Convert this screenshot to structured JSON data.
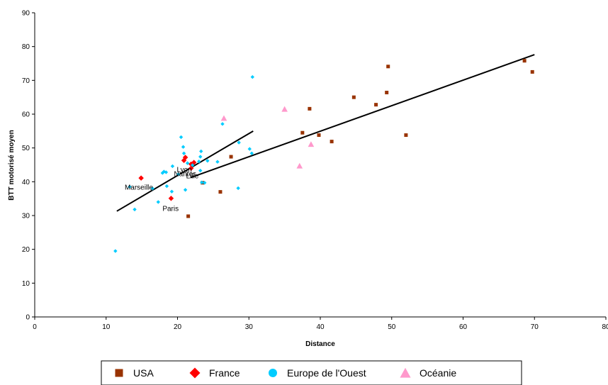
{
  "chart_data": {
    "type": "scatter",
    "xlabel": "Distance",
    "ylabel": "BTT motorisé moyen",
    "xlim": [
      0,
      80
    ],
    "ylim": [
      0,
      90
    ],
    "x_ticks": [
      0,
      10,
      20,
      30,
      40,
      50,
      60,
      70,
      80
    ],
    "y_ticks": [
      0,
      10,
      20,
      30,
      40,
      50,
      60,
      70,
      80,
      90
    ],
    "grid": false,
    "legend_position": "bottom",
    "series": [
      {
        "name": "USA",
        "marker": "square",
        "color": "#993300",
        "points": [
          [
            21.5,
            29.8
          ],
          [
            23.5,
            39.7
          ],
          [
            26.0,
            37.0
          ],
          [
            27.5,
            47.4
          ],
          [
            37.5,
            54.5
          ],
          [
            38.5,
            61.6
          ],
          [
            39.8,
            53.8
          ],
          [
            41.6,
            51.9
          ],
          [
            44.7,
            65.0
          ],
          [
            47.8,
            62.8
          ],
          [
            49.3,
            66.4
          ],
          [
            49.5,
            74.1
          ],
          [
            52.0,
            53.8
          ],
          [
            68.6,
            75.8
          ],
          [
            69.7,
            72.5
          ]
        ]
      },
      {
        "name": "France",
        "marker": "diamond",
        "color": "#ff0000",
        "points": [
          [
            14.9,
            41.1
          ],
          [
            19.1,
            35.1
          ],
          [
            20.9,
            46.3
          ],
          [
            21.1,
            47.2
          ],
          [
            21.9,
            45.2
          ],
          [
            21.9,
            44.0
          ],
          [
            22.3,
            45.7
          ]
        ]
      },
      {
        "name": "Europe de l'Ouest",
        "marker": "circle",
        "color": "#00ccff",
        "points": [
          [
            11.3,
            19.5
          ],
          [
            13.3,
            38.5
          ],
          [
            14.0,
            31.8
          ],
          [
            16.5,
            38.0
          ],
          [
            17.3,
            34.0
          ],
          [
            17.9,
            42.6
          ],
          [
            18.1,
            43.0
          ],
          [
            18.4,
            42.8
          ],
          [
            18.5,
            38.7
          ],
          [
            19.2,
            37.1
          ],
          [
            19.3,
            44.6
          ],
          [
            20.1,
            42.2
          ],
          [
            20.5,
            53.2
          ],
          [
            20.8,
            50.3
          ],
          [
            20.9,
            48.4
          ],
          [
            21.1,
            37.6
          ],
          [
            21.4,
            45.5
          ],
          [
            22.1,
            44.9
          ],
          [
            23.0,
            46.0
          ],
          [
            23.2,
            47.4
          ],
          [
            23.2,
            43.3
          ],
          [
            23.3,
            49.0
          ],
          [
            23.4,
            39.8
          ],
          [
            23.8,
            39.7
          ],
          [
            24.2,
            46.2
          ],
          [
            25.6,
            45.9
          ],
          [
            26.3,
            57.1
          ],
          [
            28.5,
            38.1
          ],
          [
            28.6,
            51.6
          ],
          [
            30.1,
            49.7
          ],
          [
            30.4,
            48.4
          ],
          [
            30.5,
            71.0
          ]
        ]
      },
      {
        "name": "Océanie",
        "marker": "triangle",
        "color": "#ff99cc",
        "points": [
          [
            26.5,
            58.7
          ],
          [
            35.0,
            61.4
          ],
          [
            37.1,
            44.6
          ],
          [
            38.7,
            51.0
          ]
        ]
      }
    ],
    "trend_lines": [
      [
        [
          11.5,
          31.3
        ],
        [
          30.6,
          55.0
        ]
      ],
      [
        [
          21.8,
          41.2
        ],
        [
          70.0,
          77.6
        ]
      ]
    ],
    "annotations": [
      {
        "text": "Marseille",
        "x": 12.6,
        "y": 37.7
      },
      {
        "text": "Paris",
        "x": 17.9,
        "y": 31.4
      },
      {
        "text": "Lyon",
        "x": 19.9,
        "y": 42.9
      },
      {
        "text": "Nantes",
        "x": 19.5,
        "y": 41.6
      },
      {
        "text": "Lille",
        "x": 21.2,
        "y": 41.0
      }
    ]
  }
}
